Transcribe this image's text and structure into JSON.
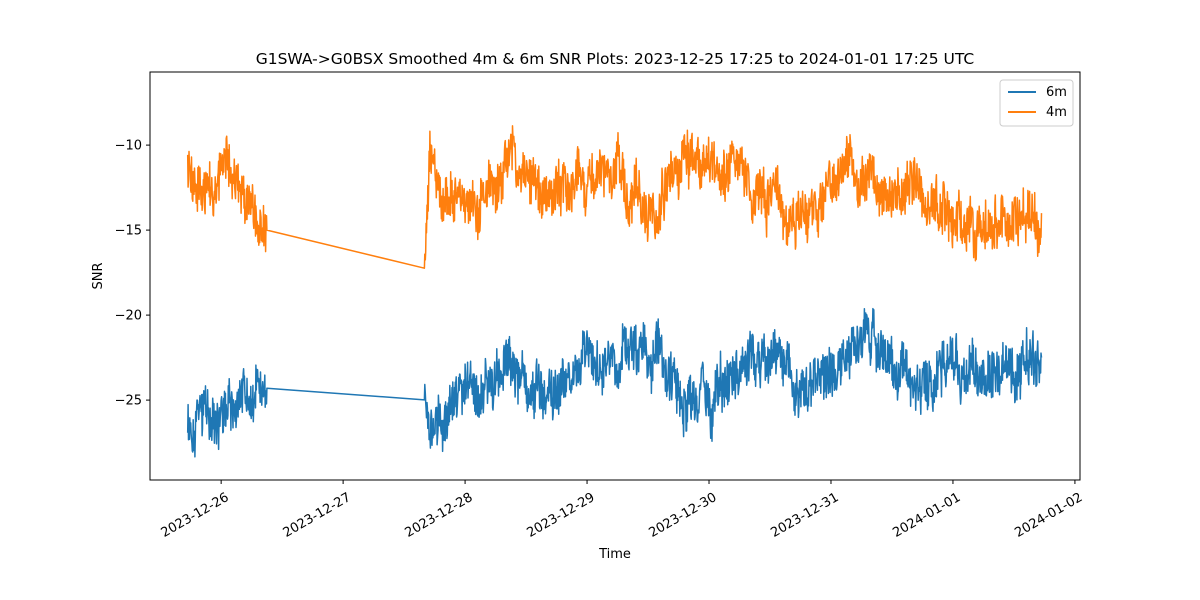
{
  "chart_data": {
    "type": "line",
    "title": "G1SWA->G0BSX Smoothed 4m & 6m SNR Plots: 2023-12-25 17:25 to 2024-01-01 17:25 UTC",
    "xlabel": "Time",
    "ylabel": "SNR",
    "x_axis_type": "datetime",
    "xlim": [
      "2023-12-25 10:00",
      "2024-01-02 01:00"
    ],
    "ylim": [
      -29.7,
      -5.7
    ],
    "x_ticks": [
      "2023-12-26",
      "2023-12-27",
      "2023-12-28",
      "2023-12-29",
      "2023-12-30",
      "2023-12-31",
      "2024-01-01",
      "2024-01-02"
    ],
    "y_ticks": [
      -25,
      -20,
      -15,
      -10
    ],
    "y_tick_labels": [
      "−25",
      "−20",
      "−15",
      "−10"
    ],
    "legend_position": "top-right",
    "grid": false,
    "series": [
      {
        "name": "6m",
        "color": "#1f77b4",
        "x": [
          "2023-12-25 17:25",
          "2023-12-25 19:00",
          "2023-12-25 21:00",
          "2023-12-25 23:00",
          "2023-12-26 01:00",
          "2023-12-26 03:00",
          "2023-12-26 05:00",
          "2023-12-26 07:00",
          "2023-12-26 09:00",
          "2023-12-27 16:00",
          "2023-12-27 17:00",
          "2023-12-27 20:00",
          "2023-12-28 00:00",
          "2023-12-28 04:00",
          "2023-12-28 08:00",
          "2023-12-28 12:00",
          "2023-12-28 16:00",
          "2023-12-28 20:00",
          "2023-12-29 00:00",
          "2023-12-29 04:00",
          "2023-12-29 08:00",
          "2023-12-29 12:00",
          "2023-12-29 16:00",
          "2023-12-29 20:00",
          "2023-12-30 00:00",
          "2023-12-30 04:00",
          "2023-12-30 08:00",
          "2023-12-30 12:00",
          "2023-12-30 16:00",
          "2023-12-30 20:00",
          "2023-12-31 00:00",
          "2023-12-31 04:00",
          "2023-12-31 08:00",
          "2023-12-31 12:00",
          "2023-12-31 16:00",
          "2023-12-31 20:00",
          "2024-01-01 00:00",
          "2024-01-01 04:00",
          "2024-01-01 08:00",
          "2024-01-01 12:00",
          "2024-01-01 17:25"
        ],
        "y": [
          -26,
          -26.5,
          -25.5,
          -25.8,
          -25,
          -25.2,
          -24.8,
          -24.5,
          -24.3,
          -24.3,
          -27,
          -26.5,
          -24.5,
          -24,
          -23.2,
          -23.8,
          -24.5,
          -23.5,
          -23.4,
          -22.8,
          -22.3,
          -22.8,
          -23.5,
          -24.8,
          -25,
          -24.3,
          -22.5,
          -22.6,
          -23.6,
          -24.8,
          -23.2,
          -21.6,
          -21.9,
          -23.4,
          -24.2,
          -23.6,
          -23,
          -23.8,
          -23.2,
          -23.3,
          -22.5
        ]
      },
      {
        "name": "4m",
        "color": "#ff7f0e",
        "x": [
          "2023-12-25 17:25",
          "2023-12-25 19:00",
          "2023-12-25 21:00",
          "2023-12-25 23:00",
          "2023-12-26 01:00",
          "2023-12-26 03:00",
          "2023-12-26 05:00",
          "2023-12-26 07:00",
          "2023-12-26 09:00",
          "2023-12-27 16:00",
          "2023-12-27 17:00",
          "2023-12-27 20:00",
          "2023-12-28 00:00",
          "2023-12-28 04:00",
          "2023-12-28 08:00",
          "2023-12-28 12:00",
          "2023-12-28 16:00",
          "2023-12-28 20:00",
          "2023-12-29 00:00",
          "2023-12-29 04:00",
          "2023-12-29 08:00",
          "2023-12-29 12:00",
          "2023-12-29 16:00",
          "2023-12-29 20:00",
          "2023-12-30 00:00",
          "2023-12-30 04:00",
          "2023-12-30 08:00",
          "2023-12-30 12:00",
          "2023-12-30 16:00",
          "2023-12-30 20:00",
          "2023-12-31 00:00",
          "2023-12-31 04:00",
          "2023-12-31 08:00",
          "2023-12-31 12:00",
          "2023-12-31 16:00",
          "2023-12-31 20:00",
          "2024-01-01 00:00",
          "2024-01-01 04:00",
          "2024-01-01 08:00",
          "2024-01-01 12:00",
          "2024-01-01 17:25"
        ],
        "y": [
          -11,
          -13,
          -12.5,
          -12,
          -11.5,
          -11.5,
          -13,
          -14,
          -15,
          -16,
          -11.5,
          -12.5,
          -13.5,
          -13,
          -11,
          -11.5,
          -12.8,
          -12.5,
          -12.5,
          -12,
          -13.5,
          -14,
          -12.5,
          -11,
          -11,
          -11.5,
          -12.5,
          -13.5,
          -14.5,
          -14,
          -12,
          -11.5,
          -12,
          -13,
          -12.5,
          -13,
          -14,
          -14.5,
          -15,
          -14.5,
          -14
        ]
      }
    ]
  }
}
